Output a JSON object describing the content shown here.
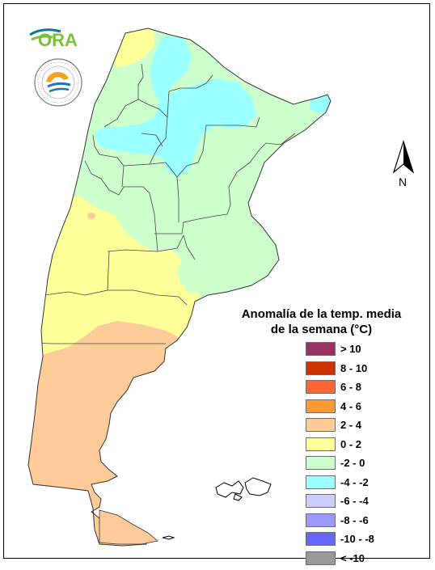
{
  "logo": {
    "wordmark": "ORA",
    "seal_text": "SERVICIO METEOROLÓGICO NACIONAL · ARGENTINA"
  },
  "north_label": "N",
  "legend": {
    "title_line1": "Anomalía de la temp. media",
    "title_line2": "de la semana (°C)",
    "items": [
      {
        "label": "> 10",
        "color": "#993366"
      },
      {
        "label": "8 - 10",
        "color": "#cc3300"
      },
      {
        "label": "6 - 8",
        "color": "#ff6633"
      },
      {
        "label": "4 - 6",
        "color": "#ff9933"
      },
      {
        "label": "2 - 4",
        "color": "#ffcc99"
      },
      {
        "label": "0 - 2",
        "color": "#ffff99"
      },
      {
        "label": "-2 - 0",
        "color": "#ccffcc"
      },
      {
        "label": "-4 - -2",
        "color": "#99ffff"
      },
      {
        "label": "-6 - -4",
        "color": "#ccccff"
      },
      {
        "label": "-8 - -6",
        "color": "#9999ff"
      },
      {
        "label": "-10 - -8",
        "color": "#6666ff"
      },
      {
        "label": "< -10",
        "color": "#999999"
      }
    ]
  },
  "map_colors": {
    "warm": "#ffcc99",
    "mild": "#ffff99",
    "cool": "#ccffcc",
    "cold": "#99ffff",
    "border": "#444444"
  }
}
